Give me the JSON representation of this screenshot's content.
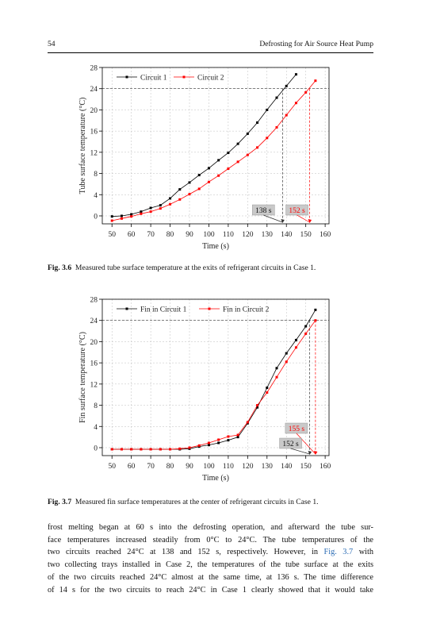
{
  "header": {
    "page_number": "54",
    "running_title": "Defrosting for Air Source Heat Pump"
  },
  "figures": [
    {
      "label": "Fig. 3.6",
      "caption": "Measured tube surface temperature at the exits of refrigerant circuits in Case 1."
    },
    {
      "label": "Fig. 3.7",
      "caption": "Measured fin surface temperatures at the center of refrigerant circuits in Case 1."
    }
  ],
  "body_lines": [
    [
      "frost melting began at 60 s into the defrosting operation, and afterward the tube sur-"
    ],
    [
      "face temperatures increased steadily from 0°C to 24°C. The tube temperatures of the"
    ],
    [
      "two circuits reached 24°C at 138 and 152 s, respectively. However, in ",
      {
        "ref": "Fig. 3.7"
      },
      " with"
    ],
    [
      "two collecting trays installed in Case 2, the temperatures of the tube surface at the exits"
    ],
    [
      "of the two circuits reached 24°C almost at the same time, at 136 s. The time difference"
    ],
    [
      "of 14 s for the two circuits to reach 24°C in Case 1 clearly showed that it would take"
    ]
  ],
  "chart_data": [
    {
      "type": "line",
      "xlabel": "Time (s)",
      "ylabel": "Tube surface temperature (°C)",
      "xlim": [
        45,
        162
      ],
      "ylim": [
        -1.5,
        28
      ],
      "xticks": [
        50,
        60,
        70,
        80,
        90,
        100,
        110,
        120,
        130,
        140,
        150,
        160
      ],
      "yticks": [
        0,
        4,
        8,
        12,
        16,
        20,
        24,
        28
      ],
      "grid": true,
      "legend": "top-left",
      "series": [
        {
          "name": "Circuit 1",
          "color": "#000000",
          "x": [
            50,
            55,
            60,
            65,
            70,
            75,
            80,
            85,
            90,
            95,
            100,
            105,
            110,
            115,
            120,
            125,
            130,
            135,
            140,
            145
          ],
          "y": [
            -0.1,
            0.0,
            0.3,
            0.8,
            1.5,
            2.0,
            3.3,
            5.0,
            6.3,
            7.7,
            9.0,
            10.5,
            11.9,
            13.6,
            15.5,
            17.6,
            20.0,
            22.3,
            24.5,
            26.7
          ]
        },
        {
          "name": "Circuit 2",
          "color": "#ff0000",
          "x": [
            50,
            55,
            60,
            65,
            70,
            75,
            80,
            85,
            90,
            95,
            100,
            105,
            110,
            115,
            120,
            125,
            130,
            135,
            140,
            145,
            150,
            155
          ],
          "y": [
            -0.9,
            -0.5,
            -0.1,
            0.4,
            0.8,
            1.4,
            2.2,
            3.1,
            4.1,
            5.1,
            6.4,
            7.6,
            8.9,
            10.2,
            11.5,
            12.9,
            14.7,
            16.7,
            19.0,
            21.3,
            23.3,
            25.5
          ]
        }
      ],
      "reference_line_y": 24,
      "annotations": [
        {
          "text": "138 s",
          "x": 138,
          "style": "grey"
        },
        {
          "text": "152 s",
          "x": 152,
          "style": "red"
        }
      ]
    },
    {
      "type": "line",
      "xlabel": "Time (s)",
      "ylabel": "Fin surface temperature (°C)",
      "xlim": [
        45,
        162
      ],
      "ylim": [
        -1.5,
        28
      ],
      "xticks": [
        50,
        60,
        70,
        80,
        90,
        100,
        110,
        120,
        130,
        140,
        150,
        160
      ],
      "yticks": [
        0,
        4,
        8,
        12,
        16,
        20,
        24,
        28
      ],
      "grid": true,
      "legend": "top-left",
      "series": [
        {
          "name": "Fin in Circuit 1",
          "color": "#000000",
          "x": [
            50,
            55,
            60,
            65,
            70,
            75,
            80,
            85,
            90,
            95,
            100,
            105,
            110,
            115,
            120,
            125,
            130,
            135,
            140,
            145,
            150,
            155
          ],
          "y": [
            -0.3,
            -0.3,
            -0.3,
            -0.3,
            -0.3,
            -0.3,
            -0.3,
            -0.3,
            -0.2,
            0.2,
            0.5,
            0.9,
            1.4,
            2.0,
            4.6,
            7.6,
            11.3,
            15.0,
            17.8,
            20.3,
            22.9,
            26.0
          ]
        },
        {
          "name": "Fin in Circuit 2",
          "color": "#ff0000",
          "x": [
            50,
            55,
            60,
            65,
            70,
            75,
            80,
            85,
            90,
            95,
            100,
            105,
            110,
            115,
            120,
            125,
            130,
            135,
            140,
            145,
            150,
            155
          ],
          "y": [
            -0.3,
            -0.3,
            -0.3,
            -0.3,
            -0.3,
            -0.3,
            -0.3,
            -0.2,
            0.0,
            0.4,
            0.9,
            1.5,
            2.1,
            2.4,
            4.8,
            8.0,
            10.4,
            13.3,
            16.2,
            18.9,
            21.5,
            24.0
          ]
        }
      ],
      "reference_line_y": 24,
      "annotations": [
        {
          "text": "155 s",
          "x": 155,
          "style": "red"
        },
        {
          "text": "152 s",
          "x": 152,
          "style": "grey"
        }
      ]
    }
  ]
}
